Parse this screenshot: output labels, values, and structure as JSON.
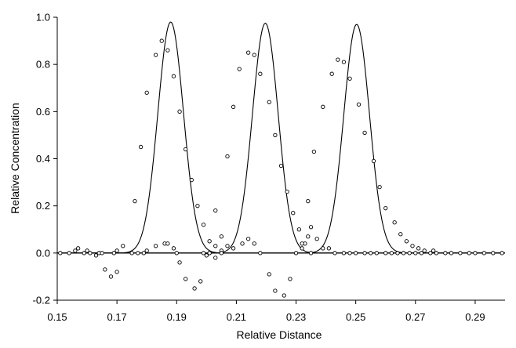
{
  "chart_data": {
    "type": "scatter",
    "title": "",
    "xlabel": "Relative Distance",
    "ylabel": "Relative Concentration",
    "xlim": [
      0.15,
      0.3
    ],
    "ylim": [
      -0.2,
      1.0
    ],
    "grid": false,
    "legend": "none",
    "x_ticks": [
      "0.15",
      "0.17",
      "0.19",
      "0.21",
      "0.23",
      "0.25",
      "0.27",
      "0.29"
    ],
    "x_tick_values": [
      0.15,
      0.17,
      0.19,
      0.21,
      0.23,
      0.25,
      0.27,
      0.29
    ],
    "y_ticks": [
      "-0.2",
      "0.0",
      "0.2",
      "0.4",
      "0.6",
      "0.8",
      "1.0"
    ],
    "y_tick_values": [
      -0.2,
      0.0,
      0.2,
      0.4,
      0.6,
      0.8,
      1.0
    ],
    "curves": [
      {
        "type": "line",
        "shape": "gaussian",
        "center": 0.188,
        "peak": 0.98,
        "sigma": 0.0043
      },
      {
        "type": "line",
        "shape": "gaussian",
        "center": 0.2197,
        "peak": 0.975,
        "sigma": 0.0043
      },
      {
        "type": "line",
        "shape": "gaussian",
        "center": 0.2503,
        "peak": 0.97,
        "sigma": 0.0043
      }
    ],
    "points": [
      [
        0.151,
        0.0
      ],
      [
        0.154,
        0.0
      ],
      [
        0.156,
        0.01
      ],
      [
        0.157,
        0.02
      ],
      [
        0.159,
        0.0
      ],
      [
        0.16,
        0.01
      ],
      [
        0.161,
        0.0
      ],
      [
        0.163,
        -0.01
      ],
      [
        0.164,
        0.0
      ],
      [
        0.165,
        0.0
      ],
      [
        0.166,
        -0.07
      ],
      [
        0.168,
        -0.1
      ],
      [
        0.169,
        0.0
      ],
      [
        0.17,
        -0.08
      ],
      [
        0.17,
        0.01
      ],
      [
        0.172,
        0.03
      ],
      [
        0.175,
        0.0
      ],
      [
        0.177,
        0.0
      ],
      [
        0.179,
        0.0
      ],
      [
        0.18,
        0.01
      ],
      [
        0.176,
        0.22
      ],
      [
        0.178,
        0.45
      ],
      [
        0.18,
        0.68
      ],
      [
        0.183,
        0.84
      ],
      [
        0.185,
        0.9
      ],
      [
        0.187,
        0.86
      ],
      [
        0.189,
        0.75
      ],
      [
        0.191,
        0.6
      ],
      [
        0.193,
        0.44
      ],
      [
        0.195,
        0.31
      ],
      [
        0.197,
        0.2
      ],
      [
        0.199,
        0.12
      ],
      [
        0.201,
        0.05
      ],
      [
        0.203,
        0.03
      ],
      [
        0.205,
        0.01
      ],
      [
        0.183,
        0.03
      ],
      [
        0.186,
        0.04
      ],
      [
        0.187,
        0.04
      ],
      [
        0.189,
        0.02
      ],
      [
        0.19,
        0.0
      ],
      [
        0.191,
        -0.04
      ],
      [
        0.193,
        -0.11
      ],
      [
        0.196,
        -0.15
      ],
      [
        0.198,
        -0.12
      ],
      [
        0.199,
        0.0
      ],
      [
        0.201,
        0.0
      ],
      [
        0.2,
        -0.01
      ],
      [
        0.201,
        0.0
      ],
      [
        0.203,
        -0.02
      ],
      [
        0.205,
        0.0
      ],
      [
        0.207,
        0.41
      ],
      [
        0.209,
        0.62
      ],
      [
        0.211,
        0.78
      ],
      [
        0.214,
        0.85
      ],
      [
        0.216,
        0.84
      ],
      [
        0.218,
        0.76
      ],
      [
        0.221,
        0.64
      ],
      [
        0.223,
        0.5
      ],
      [
        0.225,
        0.37
      ],
      [
        0.227,
        0.26
      ],
      [
        0.229,
        0.17
      ],
      [
        0.231,
        0.1
      ],
      [
        0.233,
        0.04
      ],
      [
        0.235,
        0.0
      ],
      [
        0.203,
        0.18
      ],
      [
        0.205,
        0.07
      ],
      [
        0.207,
        0.03
      ],
      [
        0.209,
        0.02
      ],
      [
        0.212,
        0.04
      ],
      [
        0.214,
        0.06
      ],
      [
        0.216,
        0.04
      ],
      [
        0.218,
        0.0
      ],
      [
        0.221,
        -0.09
      ],
      [
        0.223,
        -0.16
      ],
      [
        0.226,
        -0.18
      ],
      [
        0.228,
        -0.11
      ],
      [
        0.23,
        0.0
      ],
      [
        0.232,
        0.02
      ],
      [
        0.234,
        0.07
      ],
      [
        0.234,
        0.22
      ],
      [
        0.236,
        0.43
      ],
      [
        0.239,
        0.62
      ],
      [
        0.242,
        0.76
      ],
      [
        0.244,
        0.82
      ],
      [
        0.246,
        0.81
      ],
      [
        0.248,
        0.74
      ],
      [
        0.251,
        0.63
      ],
      [
        0.253,
        0.51
      ],
      [
        0.256,
        0.39
      ],
      [
        0.258,
        0.28
      ],
      [
        0.26,
        0.19
      ],
      [
        0.263,
        0.13
      ],
      [
        0.265,
        0.08
      ],
      [
        0.267,
        0.05
      ],
      [
        0.269,
        0.03
      ],
      [
        0.271,
        0.02
      ],
      [
        0.273,
        0.01
      ],
      [
        0.276,
        0.01
      ],
      [
        0.232,
        0.04
      ],
      [
        0.235,
        0.11
      ],
      [
        0.237,
        0.06
      ],
      [
        0.239,
        0.02
      ],
      [
        0.241,
        0.02
      ],
      [
        0.243,
        0.0
      ],
      [
        0.246,
        0.0
      ],
      [
        0.248,
        0.0
      ],
      [
        0.25,
        0.0
      ],
      [
        0.253,
        0.0
      ],
      [
        0.255,
        0.0
      ],
      [
        0.257,
        0.0
      ],
      [
        0.26,
        0.0
      ],
      [
        0.262,
        0.0
      ],
      [
        0.264,
        0.0
      ],
      [
        0.266,
        0.0
      ],
      [
        0.268,
        0.0
      ],
      [
        0.27,
        0.0
      ],
      [
        0.272,
        0.0
      ],
      [
        0.275,
        0.0
      ],
      [
        0.277,
        0.0
      ],
      [
        0.28,
        0.0
      ],
      [
        0.282,
        0.0
      ],
      [
        0.285,
        0.0
      ],
      [
        0.288,
        0.0
      ],
      [
        0.29,
        0.0
      ],
      [
        0.293,
        0.0
      ],
      [
        0.296,
        0.0
      ],
      [
        0.299,
        0.0
      ]
    ]
  }
}
